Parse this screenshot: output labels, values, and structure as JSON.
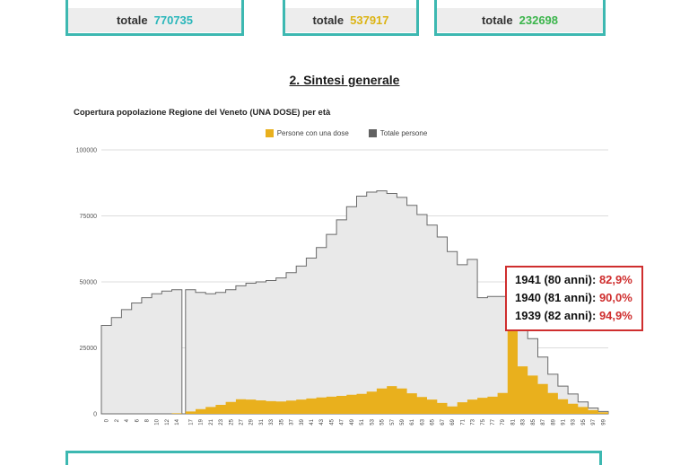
{
  "summary": {
    "boxes": [
      {
        "label": "totale",
        "value": "770735",
        "color": "#29b6ba"
      },
      {
        "label": "totale",
        "value": "537917",
        "color": "#dcb414"
      },
      {
        "label": "totale",
        "value": "232698",
        "color": "#3cb54c"
      }
    ]
  },
  "section": {
    "title": "2. Sintesi generale"
  },
  "annotation": {
    "lines": [
      {
        "label": "1941 (80 anni):",
        "value": "82,9%"
      },
      {
        "label": "1940 (81 anni):",
        "value": "90,0%"
      },
      {
        "label": "1939 (82 anni):",
        "value": "94,9%"
      }
    ]
  },
  "chart_data": {
    "type": "area",
    "title": "Copertura popolazione Regione del Veneto (UNA DOSE) per età",
    "categories": [
      "0",
      "2",
      "4",
      "6",
      "8",
      "10",
      "12",
      "14",
      "17",
      "19",
      "21",
      "23",
      "25",
      "27",
      "29",
      "31",
      "33",
      "35",
      "37",
      "39",
      "41",
      "43",
      "45",
      "47",
      "49",
      "51",
      "53",
      "55",
      "57",
      "59",
      "61",
      "63",
      "65",
      "67",
      "69",
      "71",
      "73",
      "75",
      "77",
      "79",
      "81",
      "83",
      "85",
      "87",
      "89",
      "91",
      "93",
      "95",
      "97",
      "99"
    ],
    "series": [
      {
        "name": "Persone con una dose",
        "color": "#e9b01d",
        "fill": "#e9b01d",
        "values": [
          0,
          0,
          0,
          0,
          0,
          0,
          0,
          200,
          900,
          1800,
          2600,
          3400,
          4500,
          5500,
          5400,
          5100,
          4800,
          4700,
          5000,
          5400,
          5800,
          6200,
          6500,
          6800,
          7200,
          7600,
          8400,
          9600,
          10500,
          9600,
          7800,
          6400,
          5400,
          4100,
          2800,
          4400,
          5400,
          6100,
          6500,
          7900,
          36000,
          18000,
          14500,
          11300,
          7900,
          5500,
          3800,
          2600,
          1400,
          600
        ]
      },
      {
        "name": "Totale persone",
        "color": "#616161",
        "fill": "#e9e9e9",
        "stroke": "#6a6a6a",
        "values": [
          33500,
          36500,
          39500,
          42000,
          44000,
          45500,
          46500,
          47000,
          47000,
          46000,
          45500,
          46000,
          47000,
          48500,
          49500,
          50000,
          50500,
          51500,
          53500,
          56000,
          59000,
          63000,
          68000,
          73500,
          78500,
          82500,
          84000,
          84500,
          83500,
          82000,
          79000,
          75500,
          71500,
          67000,
          61500,
          56500,
          58500,
          44000,
          44500,
          44500,
          42000,
          37500,
          28500,
          21500,
          15000,
          10500,
          7500,
          4500,
          2200,
          900
        ]
      }
    ],
    "ylim": [
      0,
      100000
    ],
    "yticks": [
      0,
      25000,
      50000,
      75000,
      100000
    ],
    "legend_position": "top",
    "grid": true,
    "x_gap_after_index": 7
  }
}
